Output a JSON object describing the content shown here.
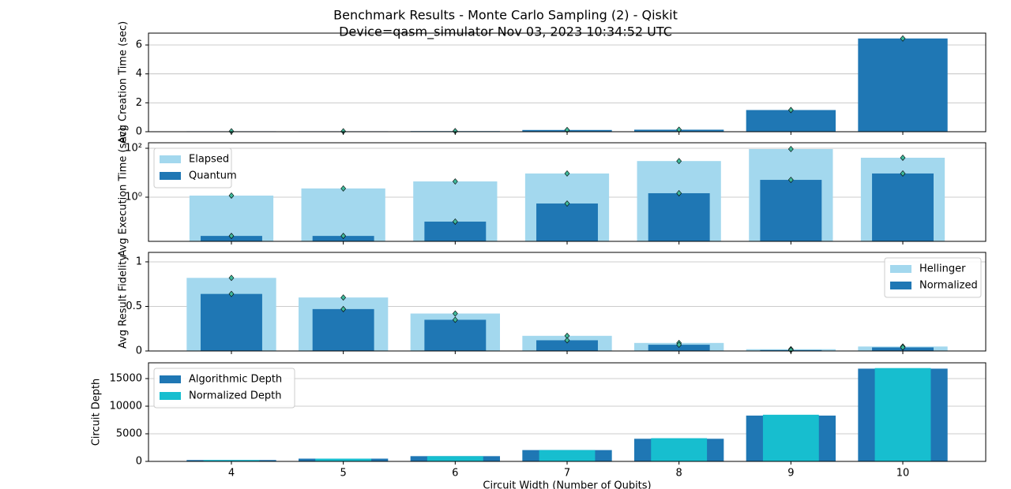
{
  "chart_data": [
    {
      "type": "bar",
      "title": "Benchmark Results - Monte Carlo Sampling (2) - Qiskit",
      "subtitle": "Device=qasm_simulator  Nov 03, 2023 10:34:52 UTC",
      "ylabel": "Avg Creation Time (sec)",
      "x": [
        4,
        5,
        6,
        7,
        8,
        9,
        10
      ],
      "values": [
        0.03,
        0.03,
        0.04,
        0.12,
        0.14,
        1.5,
        6.45
      ],
      "color": "#1f77b4",
      "markers": true,
      "xlim": [
        3.259,
        10.741
      ],
      "ylim": [
        0,
        6.82
      ],
      "yticks": [
        0,
        2,
        4,
        6
      ],
      "grid": true
    },
    {
      "type": "bar",
      "ylabel": "Avg Execution Time (sec)",
      "yscale": "log",
      "x": [
        4,
        5,
        6,
        7,
        8,
        9,
        10
      ],
      "series": [
        {
          "name": "Elapsed",
          "color": "#a3d8ee",
          "values": [
            1.16,
            2.27,
            4.4,
            9.3,
            30,
            93,
            41
          ]
        },
        {
          "name": "Quantum",
          "color": "#1f77b4",
          "values": [
            0.026,
            0.026,
            0.1,
            0.55,
            1.45,
            5.1,
            9.3
          ]
        }
      ],
      "markers": true,
      "legend": "upper-left",
      "xlim": [
        3.259,
        10.741
      ],
      "ylim": [
        0.0156,
        168
      ],
      "yticks": [
        {
          "value": 1,
          "label": "10⁰"
        },
        {
          "value": 100,
          "label": "10²"
        }
      ],
      "grid": true
    },
    {
      "type": "bar",
      "ylabel": "Avg Result Fidelity",
      "x": [
        4,
        5,
        6,
        7,
        8,
        9,
        10
      ],
      "series": [
        {
          "name": "Hellinger",
          "color": "#a3d8ee",
          "values": [
            0.82,
            0.6,
            0.42,
            0.17,
            0.09,
            0.02,
            0.05
          ]
        },
        {
          "name": "Normalized",
          "color": "#1f77b4",
          "values": [
            0.64,
            0.47,
            0.35,
            0.12,
            0.07,
            0.01,
            0.04
          ]
        }
      ],
      "markers": true,
      "legend": "upper-right",
      "xlim": [
        3.259,
        10.741
      ],
      "ylim": [
        0,
        1.106
      ],
      "yticks": [
        0.0,
        0.5,
        1.0
      ],
      "grid": true
    },
    {
      "type": "bar",
      "ylabel": "Circuit Depth",
      "xlabel": "Circuit Width (Number of Qubits)",
      "x": [
        4,
        5,
        6,
        7,
        8,
        9,
        10
      ],
      "series": [
        {
          "name": "Algorithmic Depth",
          "color": "#1f77b4",
          "values": [
            250,
            500,
            950,
            2050,
            4100,
            8300,
            16800
          ]
        },
        {
          "name": "Normalized Depth",
          "color": "#17becf",
          "values": [
            250,
            500,
            950,
            2050,
            4200,
            8450,
            16900
          ]
        }
      ],
      "markers": false,
      "legend": "upper-left",
      "xlim": [
        3.259,
        10.741
      ],
      "ylim": [
        0,
        17857
      ],
      "xticks": [
        4,
        5,
        6,
        7,
        8,
        9,
        10
      ],
      "yticks": [
        0,
        5000,
        10000,
        15000
      ],
      "grid": true
    }
  ]
}
